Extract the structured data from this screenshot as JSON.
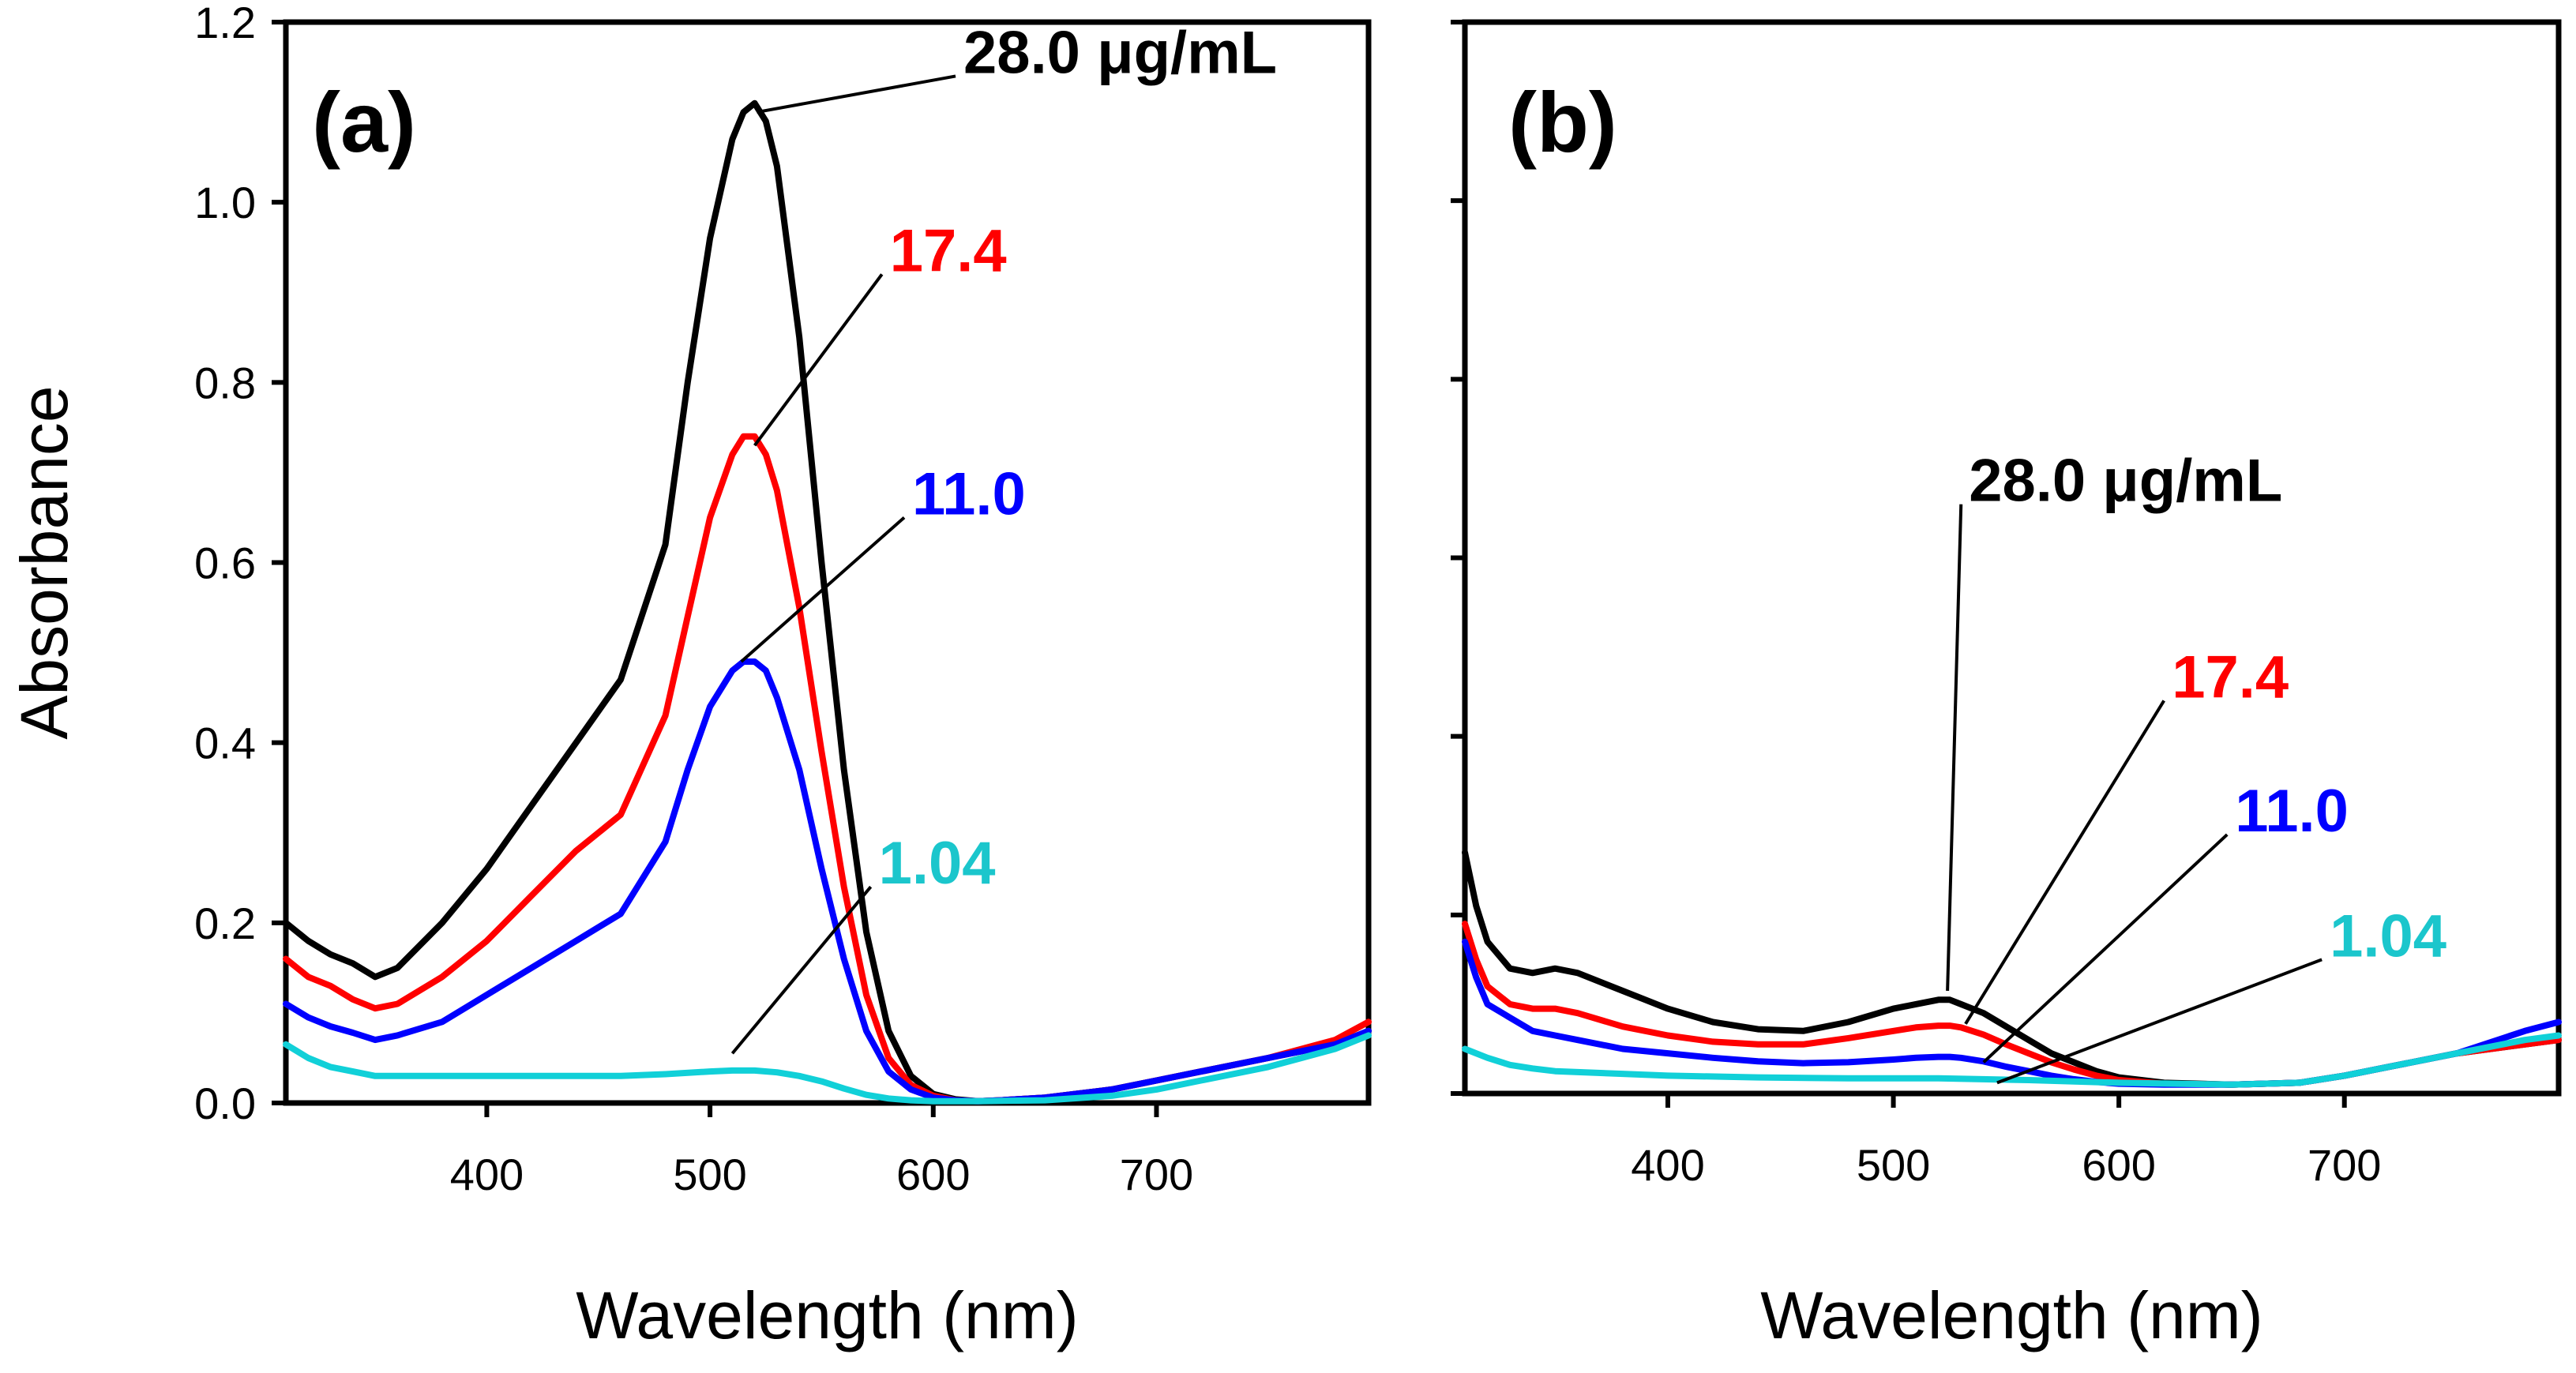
{
  "chart_data": [
    {
      "type": "line",
      "panel": "(a)",
      "xlabel": "Wavelength (nm)",
      "ylabel": "Absorbance",
      "xlim": [
        310,
        795
      ],
      "ylim": [
        0,
        1.2
      ],
      "xticks": [
        400,
        500,
        600,
        700
      ],
      "yticks": [
        0.0,
        0.2,
        0.4,
        0.6,
        0.8,
        1.0,
        1.2
      ],
      "yticklabels": [
        "0.0",
        "0.2",
        "0.4",
        "0.6",
        "0.8",
        "1.0",
        "1.2"
      ],
      "show_ytick_labels": true,
      "series": [
        {
          "name": "28.0 µg/mL",
          "label": "28.0 μg/mL",
          "color": "#000000",
          "label_color": "#000000",
          "x": [
            310,
            320,
            330,
            340,
            350,
            360,
            380,
            400,
            420,
            440,
            460,
            480,
            490,
            500,
            510,
            515,
            520,
            525,
            530,
            540,
            550,
            560,
            570,
            580,
            590,
            600,
            610,
            620,
            630,
            650,
            680,
            700,
            720,
            750,
            780,
            795
          ],
          "y": [
            0.2,
            0.18,
            0.165,
            0.155,
            0.14,
            0.15,
            0.2,
            0.26,
            0.33,
            0.4,
            0.47,
            0.62,
            0.8,
            0.96,
            1.07,
            1.1,
            1.11,
            1.09,
            1.04,
            0.85,
            0.6,
            0.37,
            0.19,
            0.08,
            0.03,
            0.01,
            0.004,
            0.002,
            0.003,
            0.006,
            0.015,
            0.025,
            0.035,
            0.05,
            0.065,
            0.08
          ]
        },
        {
          "name": "17.4",
          "label": "17.4",
          "color": "#ff0000",
          "label_color": "#ff0000",
          "x": [
            310,
            320,
            330,
            340,
            350,
            360,
            380,
            400,
            420,
            440,
            460,
            480,
            490,
            500,
            510,
            515,
            520,
            525,
            530,
            540,
            550,
            560,
            570,
            580,
            590,
            600,
            610,
            620,
            630,
            650,
            680,
            700,
            720,
            750,
            780,
            795
          ],
          "y": [
            0.16,
            0.14,
            0.13,
            0.115,
            0.105,
            0.11,
            0.14,
            0.18,
            0.23,
            0.28,
            0.32,
            0.43,
            0.54,
            0.65,
            0.72,
            0.74,
            0.74,
            0.72,
            0.68,
            0.55,
            0.39,
            0.24,
            0.12,
            0.05,
            0.02,
            0.008,
            0.003,
            0.002,
            0.003,
            0.006,
            0.015,
            0.025,
            0.035,
            0.05,
            0.07,
            0.09
          ]
        },
        {
          "name": "11.0",
          "label": "11.0",
          "color": "#0000ff",
          "label_color": "#0000ff",
          "x": [
            310,
            320,
            330,
            340,
            350,
            360,
            380,
            400,
            420,
            440,
            460,
            480,
            490,
            500,
            510,
            515,
            520,
            525,
            530,
            540,
            550,
            560,
            570,
            580,
            590,
            600,
            610,
            620,
            630,
            650,
            680,
            700,
            720,
            750,
            780,
            795
          ],
          "y": [
            0.11,
            0.095,
            0.085,
            0.078,
            0.07,
            0.075,
            0.09,
            0.12,
            0.15,
            0.18,
            0.21,
            0.29,
            0.37,
            0.44,
            0.48,
            0.49,
            0.49,
            0.48,
            0.45,
            0.37,
            0.26,
            0.16,
            0.08,
            0.035,
            0.015,
            0.006,
            0.003,
            0.002,
            0.003,
            0.006,
            0.015,
            0.025,
            0.035,
            0.05,
            0.065,
            0.08
          ]
        },
        {
          "name": "1.04",
          "label": "1.04",
          "color": "#11d0d8",
          "label_color": "#1bc6cc",
          "x": [
            310,
            320,
            330,
            340,
            350,
            360,
            380,
            400,
            420,
            440,
            460,
            480,
            500,
            510,
            520,
            530,
            540,
            550,
            560,
            570,
            580,
            590,
            600,
            620,
            650,
            680,
            700,
            720,
            750,
            780,
            795
          ],
          "y": [
            0.065,
            0.05,
            0.04,
            0.035,
            0.03,
            0.03,
            0.03,
            0.03,
            0.03,
            0.03,
            0.03,
            0.032,
            0.035,
            0.036,
            0.036,
            0.034,
            0.03,
            0.024,
            0.016,
            0.009,
            0.005,
            0.003,
            0.002,
            0.002,
            0.003,
            0.008,
            0.015,
            0.025,
            0.04,
            0.06,
            0.075
          ]
        }
      ],
      "annotations": [
        {
          "text": "28.0 μg/mL",
          "series": 0,
          "color": "#000000",
          "anchor": [
            521,
            1.1
          ],
          "label_pos": [
            610,
            1.14
          ]
        },
        {
          "text": "17.4",
          "series": 1,
          "color": "#ff0000",
          "anchor": [
            520,
            0.73
          ],
          "label_pos": [
            577,
            0.92
          ]
        },
        {
          "text": "11.0",
          "series": 2,
          "color": "#0000ff",
          "anchor": [
            514,
            0.49
          ],
          "label_pos": [
            587,
            0.65
          ]
        },
        {
          "text": "1.04",
          "series": 3,
          "color": "#1bc6cc",
          "anchor": [
            510,
            0.055
          ],
          "label_pos": [
            572,
            0.24
          ]
        }
      ]
    },
    {
      "type": "line",
      "panel": "(b)",
      "xlabel": "Wavelength (nm)",
      "ylabel": "",
      "xlim": [
        310,
        795
      ],
      "ylim": [
        0,
        1.2
      ],
      "xticks": [
        400,
        500,
        600,
        700
      ],
      "yticks": [
        0.0,
        0.2,
        0.4,
        0.6,
        0.8,
        1.0,
        1.2
      ],
      "show_ytick_labels": false,
      "series": [
        {
          "name": "28.0 µg/mL",
          "label": "28.0 μg/mL",
          "color": "#000000",
          "label_color": "#000000",
          "x": [
            310,
            315,
            320,
            330,
            340,
            350,
            360,
            380,
            400,
            420,
            440,
            460,
            480,
            500,
            510,
            520,
            525,
            530,
            540,
            550,
            560,
            570,
            580,
            590,
            600,
            620,
            650,
            680,
            700,
            720,
            750,
            780,
            795
          ],
          "y": [
            0.27,
            0.21,
            0.17,
            0.14,
            0.135,
            0.14,
            0.135,
            0.115,
            0.095,
            0.08,
            0.072,
            0.07,
            0.08,
            0.095,
            0.1,
            0.105,
            0.105,
            0.1,
            0.09,
            0.075,
            0.06,
            0.045,
            0.035,
            0.025,
            0.018,
            0.012,
            0.01,
            0.012,
            0.02,
            0.03,
            0.045,
            0.055,
            0.06
          ]
        },
        {
          "name": "17.4",
          "label": "17.4",
          "color": "#ff0000",
          "label_color": "#ff0000",
          "x": [
            310,
            315,
            320,
            330,
            340,
            350,
            360,
            380,
            400,
            420,
            440,
            460,
            480,
            500,
            510,
            520,
            525,
            530,
            540,
            550,
            560,
            570,
            580,
            590,
            600,
            620,
            650,
            680,
            700,
            720,
            750,
            780,
            795
          ],
          "y": [
            0.19,
            0.15,
            0.12,
            0.1,
            0.095,
            0.095,
            0.09,
            0.075,
            0.065,
            0.058,
            0.055,
            0.055,
            0.062,
            0.07,
            0.074,
            0.076,
            0.076,
            0.074,
            0.066,
            0.055,
            0.045,
            0.035,
            0.027,
            0.02,
            0.015,
            0.011,
            0.01,
            0.012,
            0.02,
            0.03,
            0.045,
            0.055,
            0.06
          ]
        },
        {
          "name": "11.0",
          "label": "11.0",
          "color": "#0000ff",
          "label_color": "#0000ff",
          "x": [
            310,
            315,
            320,
            330,
            340,
            350,
            360,
            380,
            400,
            420,
            440,
            460,
            480,
            500,
            510,
            520,
            525,
            530,
            540,
            550,
            560,
            570,
            580,
            590,
            600,
            620,
            650,
            680,
            700,
            720,
            750,
            780,
            795
          ],
          "y": [
            0.17,
            0.13,
            0.1,
            0.085,
            0.07,
            0.065,
            0.06,
            0.05,
            0.045,
            0.04,
            0.036,
            0.034,
            0.035,
            0.038,
            0.04,
            0.041,
            0.041,
            0.04,
            0.036,
            0.03,
            0.025,
            0.02,
            0.016,
            0.013,
            0.011,
            0.01,
            0.01,
            0.012,
            0.02,
            0.03,
            0.045,
            0.07,
            0.08
          ]
        },
        {
          "name": "1.04",
          "label": "1.04",
          "color": "#11d0d8",
          "label_color": "#1bc6cc",
          "x": [
            310,
            320,
            330,
            340,
            350,
            380,
            400,
            440,
            480,
            520,
            560,
            600,
            650,
            680,
            700,
            720,
            750,
            780,
            795
          ],
          "y": [
            0.05,
            0.04,
            0.032,
            0.028,
            0.025,
            0.022,
            0.02,
            0.018,
            0.017,
            0.017,
            0.015,
            0.012,
            0.01,
            0.012,
            0.02,
            0.03,
            0.045,
            0.06,
            0.065
          ]
        }
      ],
      "annotations": [
        {
          "text": "28.0 μg/mL",
          "series": 0,
          "color": "#000000",
          "anchor": [
            524,
            0.115
          ],
          "label_pos": [
            530,
            0.66
          ]
        },
        {
          "text": "17.4",
          "series": 1,
          "color": "#ff0000",
          "anchor": [
            532,
            0.078
          ],
          "label_pos": [
            620,
            0.44
          ]
        },
        {
          "text": "11.0",
          "series": 2,
          "color": "#0000ff",
          "anchor": [
            540,
            0.035
          ],
          "label_pos": [
            648,
            0.29
          ]
        },
        {
          "text": "1.04",
          "series": 3,
          "color": "#1bc6cc",
          "anchor": [
            546,
            0.012
          ],
          "label_pos": [
            690,
            0.15
          ]
        }
      ]
    }
  ]
}
